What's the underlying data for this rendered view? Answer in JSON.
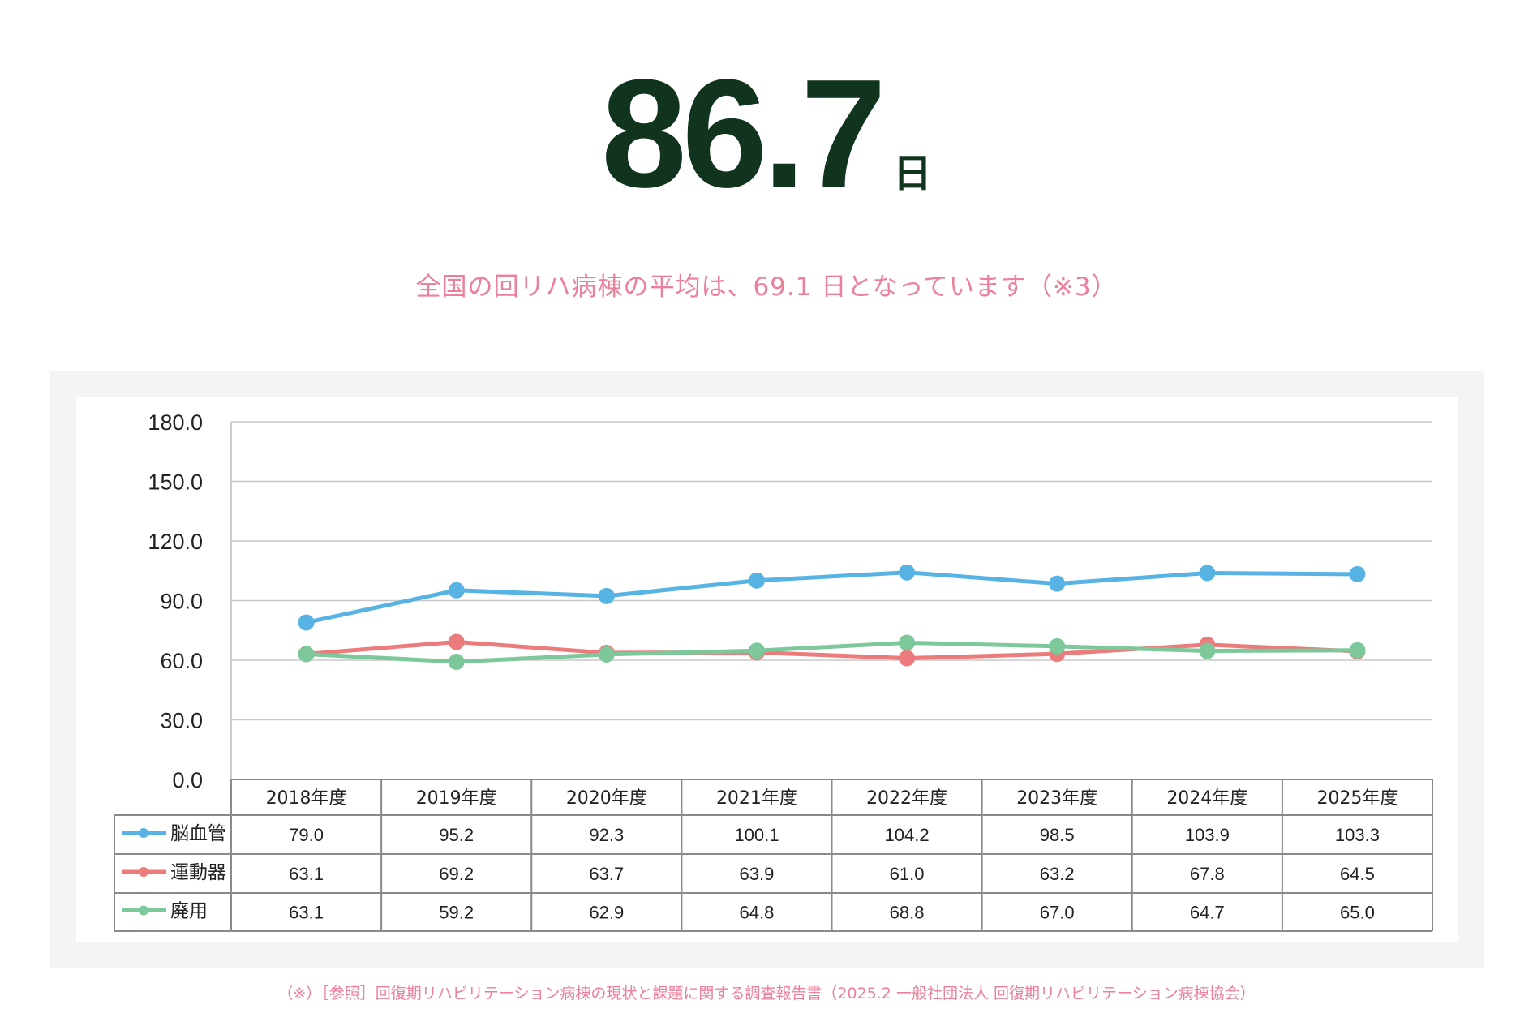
{
  "headline": {
    "value": "86.7",
    "unit": "日"
  },
  "subtitle": "全国の回リハ病棟の平均は、69.1 日となっています（※3）",
  "footnote": "（※）［参照］回復期リハビリテーション病棟の現状と課題に関する調査報告書（2025.2 一般社団法人 回復期リハビリテーション病棟協会）",
  "chart_data": {
    "type": "line",
    "categories": [
      "2018年度",
      "2019年度",
      "2020年度",
      "2021年度",
      "2022年度",
      "2023年度",
      "2024年度",
      "2025年度"
    ],
    "series": [
      {
        "name": "脳血管",
        "color": "#56b3e4",
        "values": [
          79.0,
          95.2,
          92.3,
          100.1,
          104.2,
          98.5,
          103.9,
          103.3
        ],
        "labels": [
          "79.0",
          "95.2",
          "92.3",
          "100.1",
          "104.2",
          "98.5",
          "103.9",
          "103.3"
        ]
      },
      {
        "name": "運動器",
        "color": "#ec7b7c",
        "values": [
          63.1,
          69.2,
          63.7,
          63.9,
          61.0,
          63.2,
          67.8,
          64.5
        ],
        "labels": [
          "63.1",
          "69.2",
          "63.7",
          "63.9",
          "61.0",
          "63.2",
          "67.8",
          "64.5"
        ]
      },
      {
        "name": "廃用",
        "color": "#7dc89b",
        "values": [
          63.1,
          59.2,
          62.9,
          64.8,
          68.8,
          67.0,
          64.7,
          65.0
        ],
        "labels": [
          "63.1",
          "59.2",
          "62.9",
          "64.8",
          "68.8",
          "67.0",
          "64.7",
          "65.0"
        ]
      }
    ],
    "ylim": [
      0,
      180
    ],
    "yticks": [
      "0.0",
      "30.0",
      "60.0",
      "90.0",
      "120.0",
      "150.0",
      "180.0"
    ],
    "ytick_values": [
      0,
      30,
      60,
      90,
      120,
      150,
      180
    ],
    "grid": true,
    "legend": "data-table"
  }
}
